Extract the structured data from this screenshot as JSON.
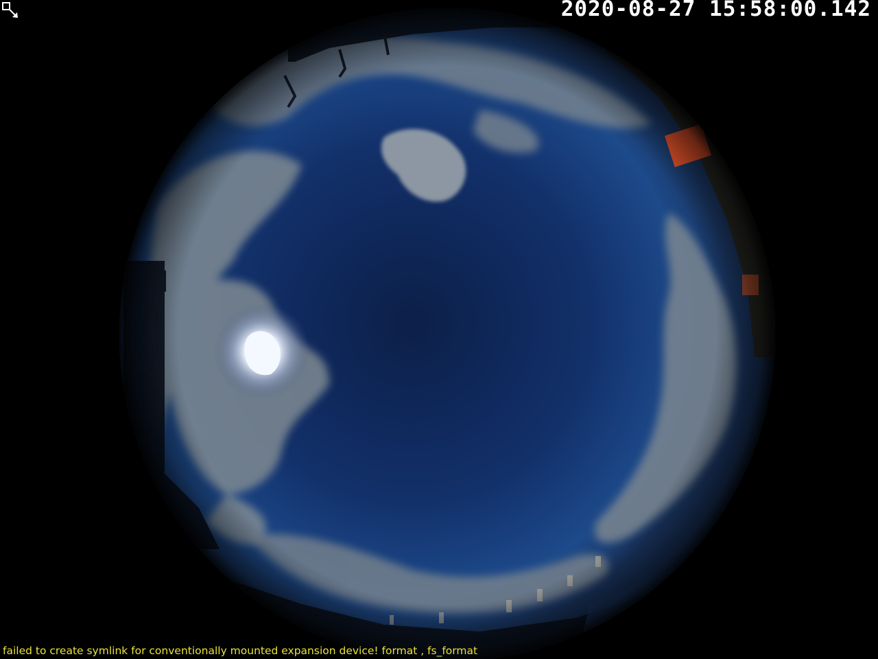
{
  "overlay": {
    "timestamp": "2020-08-27 15:58:00.142",
    "status_message": "failed to create symlink for conventionally mounted expansion device! format , fs_format"
  },
  "colors": {
    "background": "#000000",
    "timestamp_text": "#ffffff",
    "status_text": "#e6e23a",
    "sky": "#17356a",
    "sky_zenith": "#0c1f48",
    "cloud": "#8f9aa3",
    "sun": "#f4f8ff",
    "rooftop": "#1c3a66",
    "orange_box": "#e0512a"
  },
  "icons": {
    "cursor": "resize-cursor-icon"
  }
}
